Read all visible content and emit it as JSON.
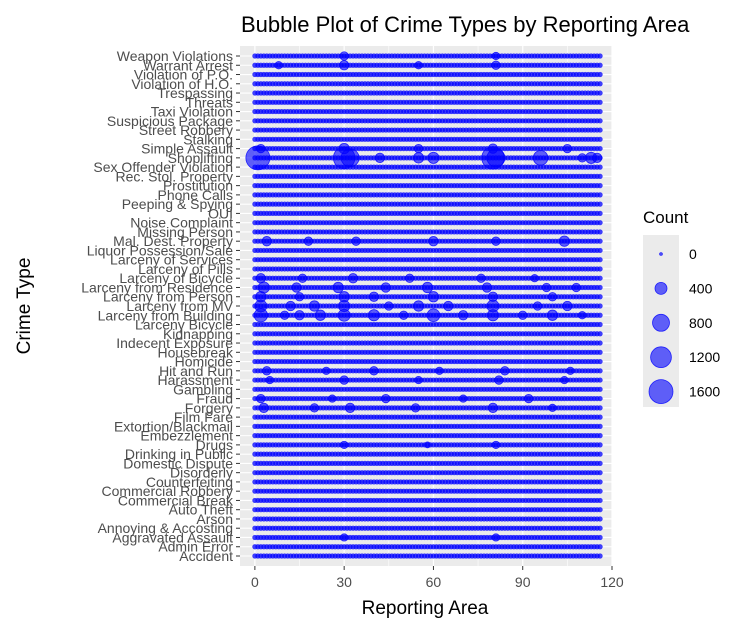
{
  "chart_data": {
    "type": "scatter",
    "title": "Bubble Plot of Crime Types by Reporting Area",
    "xlabel": "Reporting Area",
    "ylabel": "Crime Type",
    "xlim": [
      -5,
      120
    ],
    "x_ticks": [
      0,
      30,
      60,
      90,
      120
    ],
    "grid": true,
    "legend_position": "right",
    "legend": {
      "title": "Count",
      "sizes": [
        0,
        400,
        800,
        1200,
        1600
      ]
    },
    "marker_color": "#0000ff",
    "background_color": "#ebebeb",
    "gridline_color": "#ffffff",
    "categories": [
      "Accident",
      "Admin Error",
      "Aggravated Assault",
      "Annoying & Accosting",
      "Arson",
      "Auto Theft",
      "Commercial Break",
      "Commercial Robbery",
      "Counterfeiting",
      "Disorderly",
      "Domestic Dispute",
      "Drinking in Public",
      "Drugs",
      "Embezzlement",
      "Extortion/Blackmail",
      "Film Fare",
      "Forgery",
      "Fraud",
      "Gambling",
      "Harassment",
      "Hit and Run",
      "Homicide",
      "Housebreak",
      "Indecent Exposure",
      "Kidnapping",
      "Larceny Bicycle",
      "Larceny from Building",
      "Larceny from MV",
      "Larceny from Person",
      "Larceny from Residence",
      "Larceny of Bicycle",
      "Larceny of Pills",
      "Larceny of Services",
      "Liquor Possession/Sale",
      "Mal. Dest. Property",
      "Missing Person",
      "Noise Complaint",
      "OUI",
      "Peeping & Spying",
      "Phone Calls",
      "Prostitution",
      "Rec. Stol. Property",
      "Sex Offender Violation",
      "Shoplifting",
      "Simple Assault",
      "Stalking",
      "Street Robbery",
      "Suspicious Package",
      "Taxi Violation",
      "Threats",
      "Trespassing",
      "Violation of H.O.",
      "Violation of P.O.",
      "Warrant Arrest",
      "Weapon Violations"
    ],
    "x_range": [
      0,
      116
    ],
    "series": [
      {
        "category": "Shoplifting",
        "points": [
          [
            1,
            1600
          ],
          [
            30,
            1300
          ],
          [
            32,
            900
          ],
          [
            42,
            250
          ],
          [
            55,
            300
          ],
          [
            60,
            350
          ],
          [
            80,
            1400
          ],
          [
            81,
            900
          ],
          [
            96,
            600
          ],
          [
            110,
            200
          ],
          [
            113,
            350
          ],
          [
            115,
            250
          ]
        ]
      },
      {
        "category": "Larceny from Building",
        "points": [
          [
            2,
            500
          ],
          [
            10,
            200
          ],
          [
            15,
            250
          ],
          [
            22,
            300
          ],
          [
            30,
            400
          ],
          [
            40,
            350
          ],
          [
            50,
            200
          ],
          [
            60,
            450
          ],
          [
            70,
            250
          ],
          [
            80,
            350
          ],
          [
            90,
            200
          ],
          [
            100,
            300
          ],
          [
            110,
            150
          ]
        ]
      },
      {
        "category": "Larceny from MV",
        "points": [
          [
            2,
            400
          ],
          [
            12,
            250
          ],
          [
            20,
            300
          ],
          [
            30,
            350
          ],
          [
            45,
            200
          ],
          [
            55,
            300
          ],
          [
            65,
            250
          ],
          [
            80,
            400
          ],
          [
            95,
            200
          ],
          [
            105,
            250
          ]
        ]
      },
      {
        "category": "Larceny from Person",
        "points": [
          [
            2,
            300
          ],
          [
            15,
            200
          ],
          [
            30,
            300
          ],
          [
            40,
            250
          ],
          [
            60,
            300
          ],
          [
            80,
            250
          ],
          [
            100,
            200
          ]
        ]
      },
      {
        "category": "Larceny from Residence",
        "points": [
          [
            3,
            350
          ],
          [
            14,
            250
          ],
          [
            28,
            300
          ],
          [
            44,
            250
          ],
          [
            58,
            300
          ],
          [
            78,
            250
          ],
          [
            98,
            200
          ],
          [
            108,
            200
          ]
        ]
      },
      {
        "category": "Larceny of Bicycle",
        "points": [
          [
            2,
            250
          ],
          [
            16,
            200
          ],
          [
            33,
            250
          ],
          [
            52,
            200
          ],
          [
            76,
            200
          ],
          [
            94,
            150
          ]
        ]
      },
      {
        "category": "Mal. Dest. Property",
        "points": [
          [
            4,
            250
          ],
          [
            18,
            200
          ],
          [
            34,
            200
          ],
          [
            60,
            250
          ],
          [
            81,
            200
          ],
          [
            104,
            300
          ]
        ]
      },
      {
        "category": "Simple Assault",
        "points": [
          [
            2,
            200
          ],
          [
            30,
            300
          ],
          [
            55,
            200
          ],
          [
            80,
            250
          ],
          [
            105,
            200
          ]
        ]
      },
      {
        "category": "Forgery",
        "points": [
          [
            3,
            250
          ],
          [
            20,
            200
          ],
          [
            32,
            250
          ],
          [
            54,
            200
          ],
          [
            80,
            250
          ],
          [
            100,
            150
          ]
        ]
      },
      {
        "category": "Fraud",
        "points": [
          [
            2,
            200
          ],
          [
            26,
            150
          ],
          [
            44,
            200
          ],
          [
            70,
            150
          ],
          [
            92,
            200
          ]
        ]
      },
      {
        "category": "Hit and Run",
        "points": [
          [
            4,
            200
          ],
          [
            24,
            150
          ],
          [
            40,
            200
          ],
          [
            62,
            150
          ],
          [
            84,
            200
          ],
          [
            106,
            150
          ]
        ]
      },
      {
        "category": "Harassment",
        "points": [
          [
            5,
            150
          ],
          [
            30,
            200
          ],
          [
            55,
            150
          ],
          [
            82,
            200
          ],
          [
            104,
            150
          ]
        ]
      },
      {
        "category": "Weapon Violations",
        "points": [
          [
            30,
            200
          ],
          [
            81,
            150
          ]
        ]
      },
      {
        "category": "Warrant Arrest",
        "points": [
          [
            8,
            150
          ],
          [
            30,
            250
          ],
          [
            55,
            150
          ],
          [
            81,
            200
          ]
        ]
      },
      {
        "category": "Drugs",
        "points": [
          [
            30,
            150
          ],
          [
            58,
            100
          ],
          [
            81,
            150
          ]
        ]
      },
      {
        "category": "Aggravated Assault",
        "points": [
          [
            30,
            150
          ],
          [
            81,
            150
          ]
        ]
      }
    ]
  }
}
